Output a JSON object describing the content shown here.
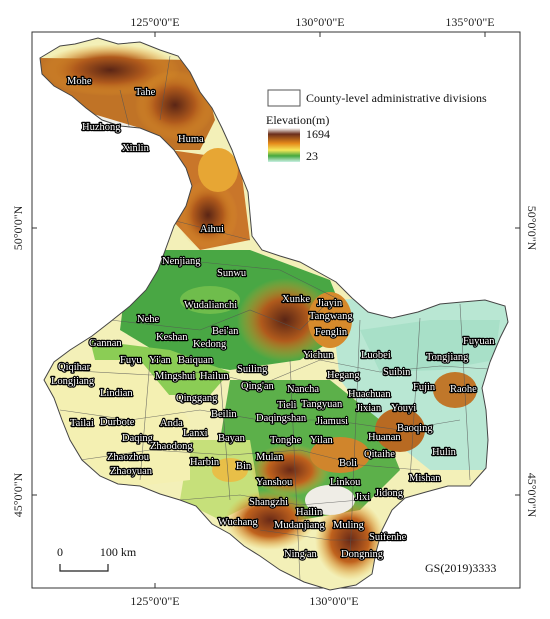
{
  "map": {
    "axis_labels": {
      "top": [
        "125°0'0\"E",
        "130°0'0\"E",
        "135°0'0\"E"
      ],
      "bottom": [
        "125°0'0\"E",
        "130°0'0\"E"
      ],
      "left": [
        "50°0'0\"N",
        "45°0'0\"N"
      ],
      "right": [
        "50°0'0\"N",
        "45°0'0\"N"
      ]
    },
    "legend": {
      "boundary_label": "County-level administrative divisions",
      "elevation_title": "Elevation(m)",
      "elevation_max": "1694",
      "elevation_min": "23"
    },
    "scale_bar": {
      "start": "0",
      "end": "100 km"
    },
    "credit": "GS(2019)3333",
    "places": [
      "Mohe",
      "Tahe",
      "Huzhong",
      "Xinlin",
      "Huma",
      "Aihui",
      "Nenjiang",
      "Sunwu",
      "Wudalianchi",
      "Xunke",
      "Jiayin",
      "Tangwang",
      "Fenglin",
      "Nehe",
      "Keshan",
      "Bei'an",
      "Kedong",
      "Gannan",
      "Fuyu",
      "Yi'an",
      "Baiquan",
      "Yichun",
      "Luobei",
      "Fuyuan",
      "Tongjiang",
      "Qiqihar",
      "Longjiang",
      "Mingshui",
      "Hailun",
      "Suiling",
      "Hegang",
      "Suibin",
      "Fujin",
      "Raohe",
      "Lindian",
      "Qinggang",
      "Qing'an",
      "Nancha",
      "Huachuan",
      "Youyi",
      "Tieli",
      "Tangyuan",
      "Jixian",
      "Tailai",
      "Durbote",
      "Anda",
      "Lanxi",
      "Beilin",
      "Daqingshan",
      "Jiamusi",
      "Baoqing",
      "Daqing",
      "Zhaodong",
      "Bayan",
      "Tonghe",
      "Yilan",
      "Huanan",
      "Zhaozhou",
      "Harbin",
      "Qitaihe",
      "Hulin",
      "Zhaoyuan",
      "Mulan",
      "Boli",
      "Bin",
      "Yanshou",
      "Linkou",
      "Mishan",
      "Shangzhi",
      "Jidong",
      "Jixi",
      "Hailin",
      "Wuchang",
      "Mudanjiang",
      "Muling",
      "Suifenhe",
      "Ning'an",
      "Dongning"
    ],
    "colors": {
      "elevation_ramp": [
        "#6b2e1b",
        "#a33a16",
        "#e58a1a",
        "#f4e14e",
        "#3fa13a",
        "#b4e6d0"
      ],
      "boundary": "#555555"
    }
  }
}
